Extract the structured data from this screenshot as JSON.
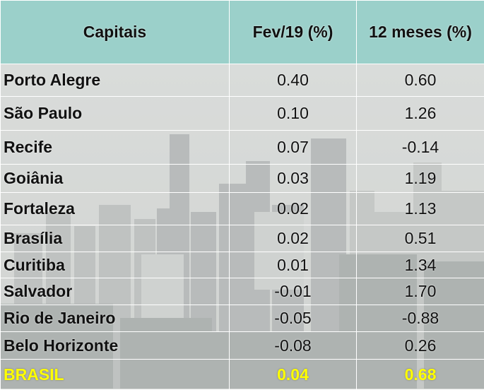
{
  "table": {
    "headers": [
      "Capitais",
      "Fev/19 (%)",
      "12 meses (%)"
    ],
    "rows": [
      {
        "city": "Porto Alegre",
        "feb": "0.40",
        "twelve": "0.60"
      },
      {
        "city": "São Paulo",
        "feb": "0.10",
        "twelve": "1.26"
      },
      {
        "city": "Recife",
        "feb": "0.07",
        "twelve": "-0.14"
      },
      {
        "city": "Goiânia",
        "feb": "0.03",
        "twelve": "1.19"
      },
      {
        "city": "Fortaleza",
        "feb": "0.02",
        "twelve": "1.13"
      },
      {
        "city": "Brasília",
        "feb": "0.02",
        "twelve": "0.51"
      },
      {
        "city": "Curitiba",
        "feb": "0.01",
        "twelve": "1.34"
      },
      {
        "city": "Salvador",
        "feb": "-0.01",
        "twelve": "1.70"
      },
      {
        "city": "Rio de Janeiro",
        "feb": "-0.05",
        "twelve": "-0.88"
      },
      {
        "city": "Belo Horizonte",
        "feb": "-0.08",
        "twelve": "0.26"
      }
    ],
    "total": {
      "city": "BRASIL",
      "feb": "0.04",
      "twelve": "0.68"
    }
  },
  "colors": {
    "header_bg": "#93cfc8",
    "total_text": "#ffff00",
    "border": "#ffffff"
  }
}
